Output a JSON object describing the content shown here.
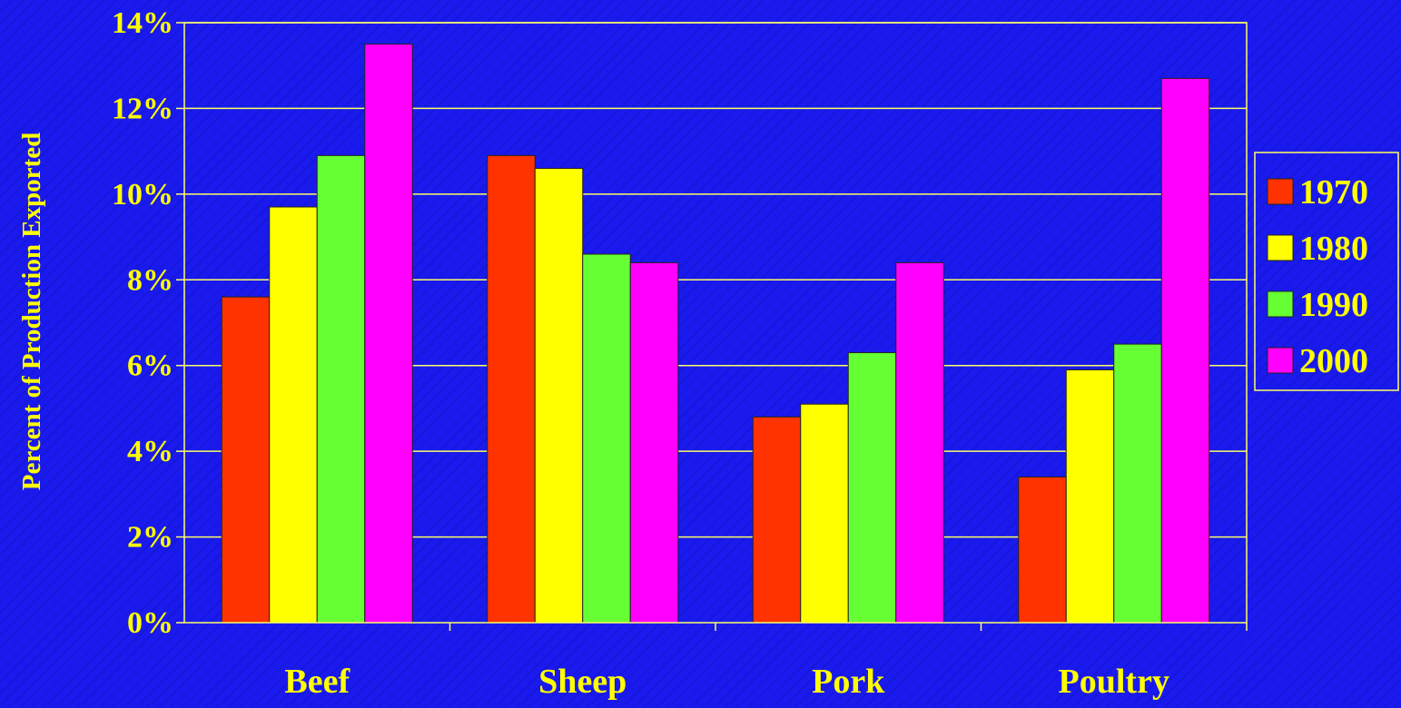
{
  "chart_data": {
    "type": "bar",
    "categories": [
      "Beef",
      "Sheep",
      "Pork",
      "Poultry"
    ],
    "series": [
      {
        "name": "1970",
        "color": "#ff3300",
        "values": [
          7.6,
          10.9,
          4.8,
          3.4
        ]
      },
      {
        "name": "1980",
        "color": "#ffff00",
        "values": [
          9.7,
          10.6,
          5.1,
          5.9
        ]
      },
      {
        "name": "1990",
        "color": "#66ff33",
        "values": [
          10.9,
          8.6,
          6.3,
          6.5
        ]
      },
      {
        "name": "2000",
        "color": "#ff00ff",
        "values": [
          13.5,
          8.4,
          8.4,
          12.7
        ]
      }
    ],
    "ylabel": "Percent of Production Exported",
    "xlabel": "",
    "title": "",
    "ylim": [
      0,
      14
    ],
    "yticks": [
      0,
      2,
      4,
      6,
      8,
      10,
      12,
      14
    ],
    "ytick_labels": [
      "0%",
      "2%",
      "4%",
      "6%",
      "8%",
      "10%",
      "12%",
      "14%"
    ],
    "grid": true,
    "legend_position": "right",
    "text_color": "#ffff00",
    "axis_color": "#ffff66",
    "background": "#1a1aee"
  }
}
